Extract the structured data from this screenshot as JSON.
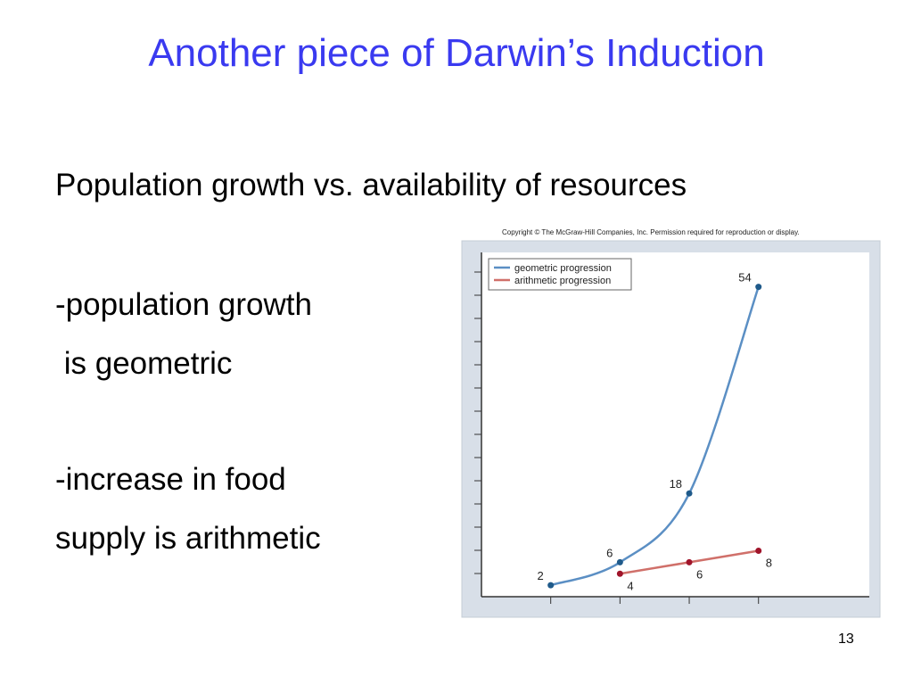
{
  "slide": {
    "title": "Another piece of Darwin’s Induction",
    "subtitle": "Population growth vs. availability of resources",
    "bullets": [
      "-population growth",
      " is geometric",
      "-increase in food",
      "supply is arithmetic"
    ],
    "copyright": "Copyright © The McGraw-Hill Companies, Inc. Permission required for reproduction or display.",
    "page_number": "13"
  },
  "chart_data": {
    "type": "line",
    "xlim": [
      0,
      5.6
    ],
    "ylim": [
      0,
      60
    ],
    "legend": "upper left",
    "series": [
      {
        "name": "geometric progression",
        "color": "#5b8fc4",
        "point_color": "#1f5a8a",
        "x": [
          1,
          2,
          3,
          4
        ],
        "values": [
          2,
          6,
          18,
          54
        ]
      },
      {
        "name": "arithmetic progression",
        "color": "#d0706a",
        "point_color": "#a0142a",
        "x": [
          2,
          3,
          4
        ],
        "values": [
          4,
          6,
          8
        ]
      }
    ]
  }
}
